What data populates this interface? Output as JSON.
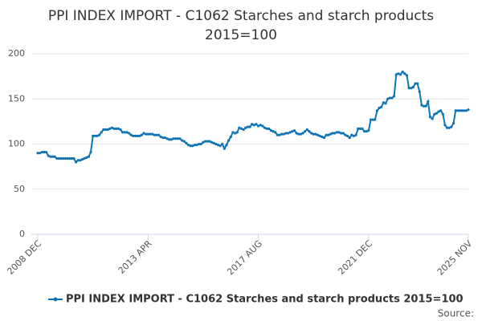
{
  "chart_data": {
    "type": "line",
    "title": "PPI INDEX IMPORT - C1062 Starches and starch products",
    "subtitle": "2015=100",
    "source_label": "Source:",
    "categories": [
      "2008 DEC",
      null,
      null,
      null,
      null,
      null,
      null,
      null,
      null,
      null,
      null,
      null,
      null,
      null,
      null,
      null,
      null,
      null,
      null,
      null,
      null,
      null,
      null,
      null,
      null,
      null,
      null,
      null,
      null,
      null,
      null,
      null,
      null,
      null,
      null,
      null,
      null,
      null,
      null,
      null,
      null,
      null,
      null,
      null,
      null,
      null,
      null,
      null,
      null,
      null,
      null,
      null,
      "2013 APR",
      null,
      null,
      null,
      null,
      null,
      null,
      null,
      null,
      null,
      null,
      null,
      null,
      null,
      null,
      null,
      null,
      null,
      null,
      null,
      null,
      null,
      null,
      null,
      null,
      null,
      null,
      null,
      null,
      null,
      null,
      null,
      null,
      null,
      null,
      null,
      null,
      null,
      null,
      null,
      null,
      null,
      null,
      null,
      null,
      null,
      null,
      null,
      null,
      null,
      null,
      null,
      "2017 AUG",
      null,
      null,
      null,
      null,
      null,
      null,
      null,
      null,
      null,
      null,
      null,
      null,
      null,
      null,
      null,
      null,
      null,
      null,
      null,
      null,
      null,
      null,
      null,
      null,
      null,
      null,
      null,
      null,
      null,
      null,
      null,
      null,
      null,
      null,
      null,
      null,
      null,
      null,
      null,
      null,
      null,
      null,
      null,
      null,
      null,
      null,
      null,
      null,
      null,
      null,
      null,
      "2021 DEC",
      null,
      null,
      null,
      null,
      null,
      null,
      null,
      null,
      null,
      null,
      null,
      null,
      null,
      null,
      null,
      null,
      null,
      null,
      null,
      null,
      null,
      null,
      null,
      null,
      null,
      null,
      null,
      null,
      null,
      null,
      null,
      null,
      null,
      null,
      null,
      null,
      null,
      null,
      null,
      null,
      null,
      null,
      null,
      null,
      null,
      null,
      "2025 NOV"
    ],
    "series": [
      {
        "name": "PPI INDEX IMPORT - C1062 Starches and starch products 2015=100",
        "color": "#0e74b6",
        "values": [
          90,
          90,
          91,
          91,
          91,
          87,
          86,
          86,
          86,
          84,
          84,
          84,
          84,
          84,
          84,
          84,
          84,
          84,
          80,
          82,
          82,
          83,
          84,
          85,
          86,
          91,
          109,
          109,
          109,
          110,
          113,
          116,
          116,
          116,
          117,
          118,
          117,
          117,
          117,
          116,
          113,
          113,
          113,
          112,
          110,
          109,
          109,
          109,
          109,
          110,
          112,
          111,
          111,
          111,
          111,
          110,
          110,
          110,
          108,
          107,
          107,
          106,
          105,
          105,
          106,
          106,
          106,
          106,
          104,
          103,
          101,
          99,
          98,
          98,
          99,
          99,
          100,
          100,
          102,
          103,
          103,
          103,
          102,
          101,
          100,
          99,
          98,
          100,
          95,
          99,
          104,
          108,
          113,
          112,
          113,
          118,
          117,
          116,
          118,
          119,
          119,
          122,
          121,
          122,
          120,
          121,
          120,
          118,
          117,
          117,
          115,
          114,
          113,
          110,
          110,
          111,
          111,
          112,
          112,
          113,
          114,
          115,
          112,
          111,
          111,
          112,
          114,
          116,
          114,
          112,
          111,
          111,
          110,
          109,
          108,
          107,
          110,
          110,
          111,
          112,
          112,
          113,
          113,
          112,
          112,
          110,
          109,
          107,
          110,
          109,
          110,
          117,
          117,
          117,
          114,
          114,
          115,
          127,
          127,
          127,
          137,
          140,
          141,
          146,
          145,
          150,
          151,
          151,
          153,
          177,
          178,
          177,
          180,
          178,
          176,
          162,
          162,
          163,
          167,
          167,
          158,
          143,
          142,
          142,
          147,
          130,
          128,
          133,
          134,
          136,
          137,
          133,
          121,
          118,
          118,
          119,
          123,
          137,
          137,
          137,
          137,
          137,
          137,
          138
        ]
      }
    ],
    "ylim": [
      0,
      200
    ],
    "yticks": [
      0,
      50,
      100,
      150,
      200
    ],
    "grid": true
  }
}
